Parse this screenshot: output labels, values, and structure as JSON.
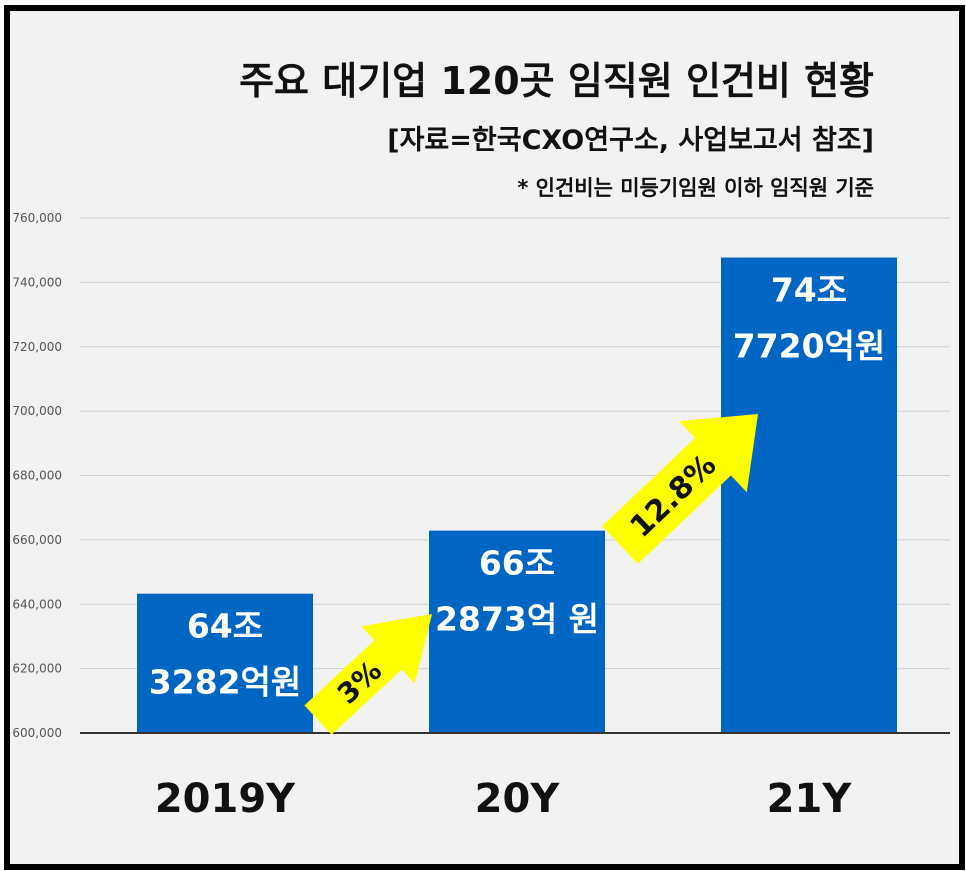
{
  "title": "주요 대기업 120곳 임직원 인건비 현황",
  "subtitle": "[자료=한국CXO연구소, 사업보고서 참조]",
  "footnote": "* 인건비는 미등기임원 이하 임직원 기준",
  "colors": {
    "bar": "#0066c4",
    "arrow": "#ffff00",
    "grid": "#d0d0d0",
    "background": "#f2f2f2"
  },
  "chart_data": {
    "type": "bar",
    "categories": [
      "2019Y",
      "20Y",
      "21Y"
    ],
    "values": [
      643282,
      662873,
      747720
    ],
    "value_labels": [
      [
        "64조",
        "3282억원"
      ],
      [
        "66조",
        "2873억 원"
      ],
      [
        "74조",
        "7720억원"
      ]
    ],
    "ylim": [
      600000,
      760000
    ],
    "yticks": [
      600000,
      620000,
      640000,
      660000,
      680000,
      700000,
      720000,
      740000,
      760000
    ],
    "ytick_labels": [
      "600,000",
      "620,000",
      "640,000",
      "660,000",
      "680,000",
      "700,000",
      "720,000",
      "740,000",
      "760,000"
    ],
    "grid": true,
    "growth_annotations": [
      "3%",
      "12.8%"
    ]
  }
}
